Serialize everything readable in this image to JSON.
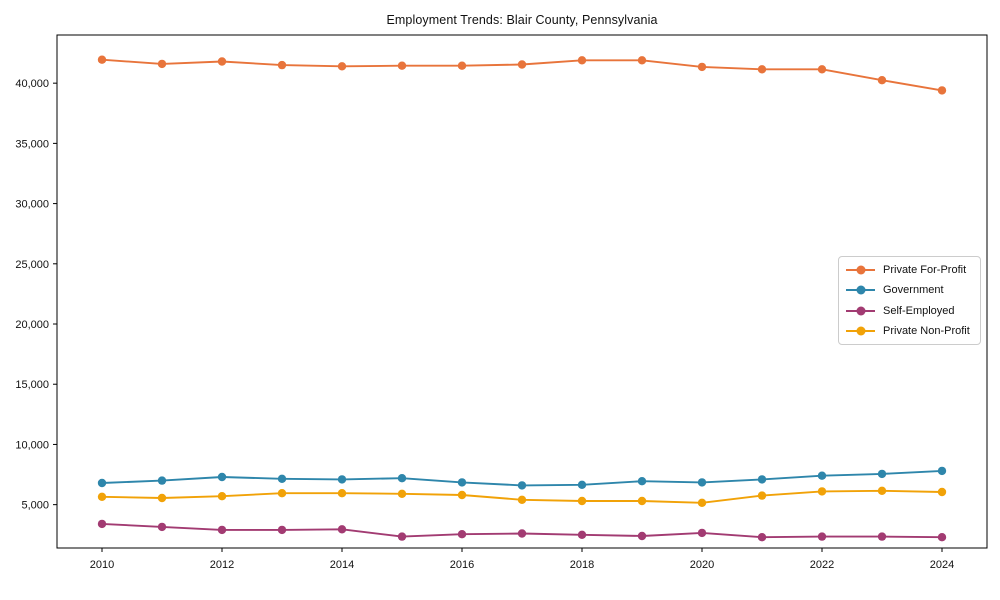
{
  "chart_data": {
    "type": "line",
    "title": "Employment Trends: Blair County, Pennsylvania",
    "xlabel": "",
    "ylabel": "",
    "x": [
      2010,
      2011,
      2012,
      2013,
      2014,
      2015,
      2016,
      2017,
      2018,
      2019,
      2020,
      2021,
      2022,
      2023,
      2024
    ],
    "series": [
      {
        "name": "Private For-Profit",
        "color": "#E8743B",
        "values": [
          41950,
          41600,
          41800,
          41500,
          41400,
          41450,
          41450,
          41550,
          41900,
          41900,
          41350,
          41150,
          41150,
          40250,
          39400
        ]
      },
      {
        "name": "Government",
        "color": "#2E86AB",
        "values": [
          6800,
          7000,
          7300,
          7150,
          7100,
          7200,
          6850,
          6600,
          6650,
          6950,
          6850,
          7100,
          7400,
          7550,
          7800
        ]
      },
      {
        "name": "Self-Employed",
        "color": "#A23B72",
        "values": [
          3400,
          3150,
          2900,
          2900,
          2950,
          2350,
          2550,
          2600,
          2500,
          2400,
          2650,
          2300,
          2350,
          2350,
          2300
        ]
      },
      {
        "name": "Private Non-Profit",
        "color": "#F1A208",
        "values": [
          5650,
          5550,
          5700,
          5950,
          5950,
          5900,
          5800,
          5400,
          5300,
          5300,
          5150,
          5750,
          6100,
          6150,
          6050
        ]
      }
    ],
    "xlim": [
      2009.25,
      2024.75
    ],
    "ylim": [
      1400,
      44000
    ],
    "xticks": {
      "values": [
        2010,
        2012,
        2014,
        2016,
        2018,
        2020,
        2022,
        2024
      ],
      "labels": [
        "2010",
        "2012",
        "2014",
        "2016",
        "2018",
        "2020",
        "2022",
        "2024"
      ]
    },
    "yticks": {
      "values": [
        5000,
        10000,
        15000,
        20000,
        25000,
        30000,
        35000,
        40000
      ],
      "labels": [
        "5,000",
        "10,000",
        "15,000",
        "20,000",
        "25,000",
        "30,000",
        "35,000",
        "40,000"
      ]
    },
    "grid": false,
    "legend": {
      "position": "center-right",
      "border_color": "#cccccc",
      "background": "#ffffff"
    },
    "frame_color": "#000000",
    "background": "#ffffff"
  }
}
